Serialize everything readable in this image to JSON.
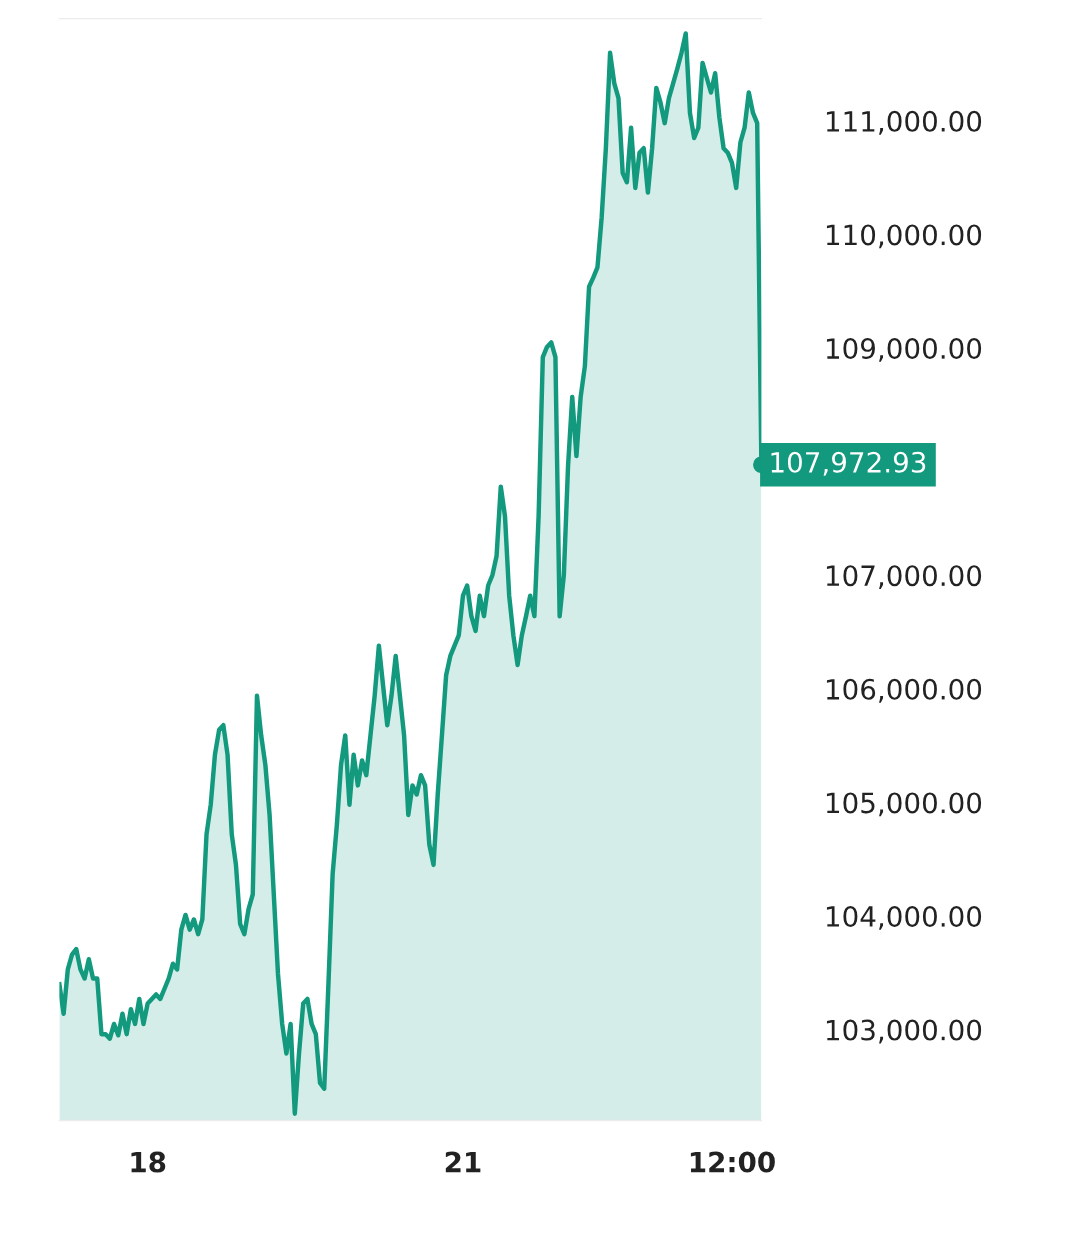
{
  "chart_data": {
    "type": "area",
    "categories": [
      null,
      null,
      null,
      null,
      null,
      null,
      null,
      null,
      null,
      null,
      null,
      null,
      null,
      null,
      null,
      null,
      null,
      null,
      null,
      null,
      null,
      "18",
      null,
      null,
      null,
      null,
      null,
      null,
      null,
      null,
      null,
      null,
      null,
      null,
      null,
      null,
      null,
      null,
      null,
      null,
      null,
      null,
      null,
      null,
      null,
      null,
      null,
      null,
      null,
      null,
      null,
      null,
      null,
      null,
      null,
      null,
      null,
      null,
      null,
      null,
      null,
      null,
      null,
      null,
      null,
      null,
      null,
      null,
      null,
      null,
      null,
      null,
      null,
      null,
      null,
      null,
      null,
      null,
      null,
      null,
      null,
      null,
      null,
      null,
      null,
      null,
      null,
      null,
      null,
      null,
      null,
      null,
      null,
      null,
      null,
      null,
      "21",
      null,
      null,
      null,
      null,
      null,
      null,
      null,
      null,
      null,
      null,
      null,
      null,
      null,
      null,
      null,
      null,
      null,
      null,
      null,
      null,
      null,
      null,
      null,
      null,
      null,
      null,
      null,
      null,
      null,
      null,
      null,
      null,
      null,
      null,
      null,
      null,
      null,
      null,
      null,
      null,
      null,
      null,
      null,
      null,
      null,
      null,
      null,
      null,
      null,
      null,
      null,
      null,
      null,
      null,
      null,
      null,
      null,
      null,
      null,
      null,
      null,
      null,
      null,
      "12:00",
      null,
      null,
      null,
      null,
      null,
      null,
      null
    ],
    "series": [
      {
        "color": "#12997e",
        "values": [
          103400,
          103140,
          103530,
          103660,
          103710,
          103530,
          103450,
          103620,
          103450,
          103450,
          102960,
          102960,
          102920,
          103050,
          102950,
          103140,
          102960,
          103180,
          103050,
          103270,
          103050,
          103230,
          103270,
          103310,
          103270,
          103360,
          103450,
          103580,
          103530,
          103880,
          104010,
          103880,
          103970,
          103840,
          103970,
          104720,
          104980,
          105420,
          105640,
          105680,
          105420,
          104720,
          104450,
          103930,
          103840,
          104060,
          104190,
          105940,
          105590,
          105330,
          104890,
          104190,
          103490,
          103050,
          102790,
          103050,
          102260,
          102790,
          103230,
          103270,
          103050,
          102960,
          102530,
          102480,
          103400,
          104370,
          104800,
          105330,
          105590,
          104980,
          105420,
          105150,
          105370,
          105240,
          105590,
          105940,
          106380,
          106030,
          105680,
          105940,
          106290,
          105940,
          105590,
          104890,
          105150,
          105070,
          105240,
          105150,
          104630,
          104450,
          105070,
          105590,
          106120,
          106290,
          106380,
          106470,
          106820,
          106910,
          106640,
          106510,
          106820,
          106640,
          106910,
          107000,
          107170,
          107780,
          107520,
          106820,
          106470,
          106210,
          106470,
          106640,
          106820,
          106640,
          107520,
          108920,
          109010,
          109050,
          108920,
          106640,
          107000,
          107960,
          108570,
          108050,
          108570,
          108840,
          109540,
          109620,
          109710,
          110150,
          110760,
          111600,
          111330,
          111200,
          110540,
          110460,
          110940,
          110410,
          110720,
          110760,
          110370,
          110760,
          111290,
          111160,
          110980,
          111200,
          111330,
          111460,
          111600,
          111770,
          111070,
          110850,
          110940,
          111510,
          111380,
          111250,
          111420,
          111030,
          110760,
          110720,
          110630,
          110410,
          110810,
          110940,
          111250,
          111070,
          110980,
          107972.93
        ]
      }
    ],
    "ylim": [
      102200,
      111900
    ],
    "yticks": [
      {
        "value": 103000,
        "label": "103,000.00"
      },
      {
        "value": 104000,
        "label": "104,000.00"
      },
      {
        "value": 105000,
        "label": "105,000.00"
      },
      {
        "value": 106000,
        "label": "106,000.00"
      },
      {
        "value": 107000,
        "label": "107,000.00"
      },
      {
        "value": 109000,
        "label": "109,000.00"
      },
      {
        "value": 110000,
        "label": "110,000.00"
      },
      {
        "value": 111000,
        "label": "111,000.00"
      }
    ],
    "annotations": [
      "107,972.93"
    ],
    "grid": false,
    "legend": false
  }
}
